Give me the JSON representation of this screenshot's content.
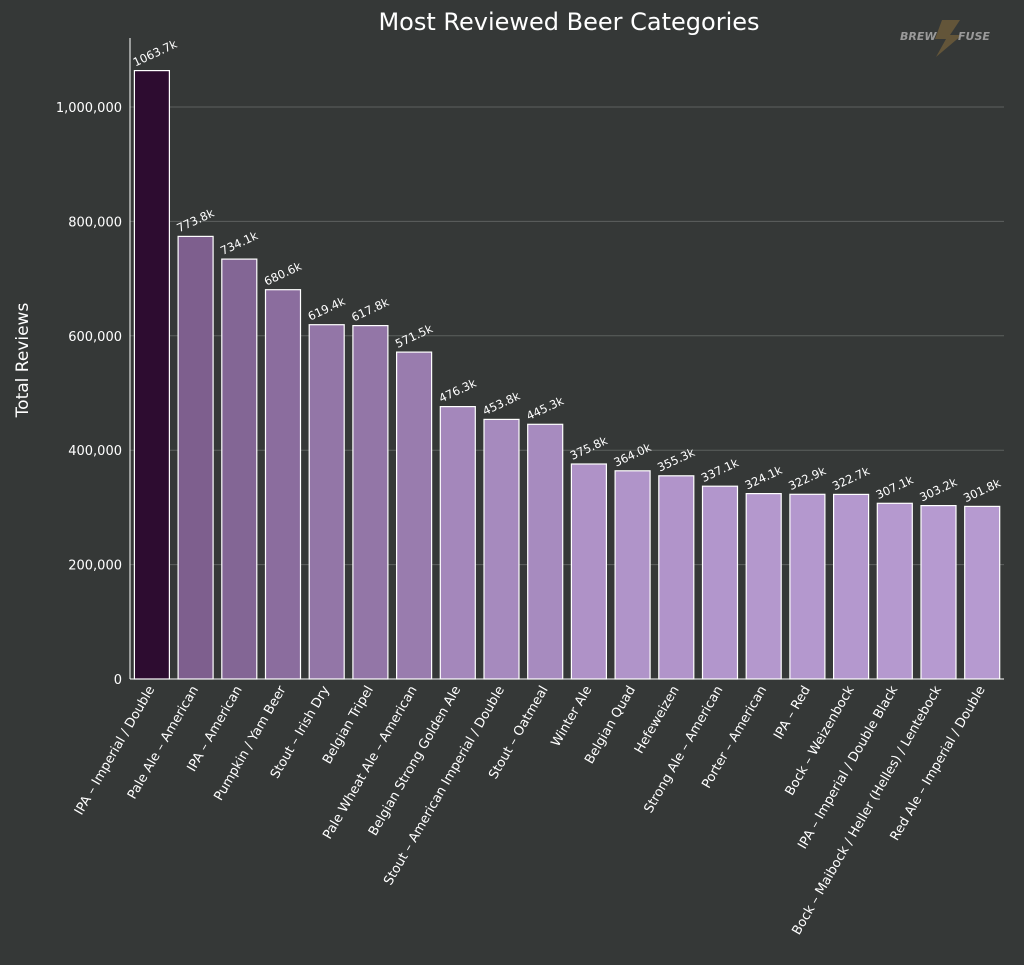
{
  "chart_data": {
    "type": "bar",
    "title": "Most Reviewed Beer Categories",
    "xlabel": "",
    "ylabel": "Total Reviews",
    "ylim": [
      0,
      1120000
    ],
    "yticks": [
      0,
      200000,
      400000,
      600000,
      800000,
      1000000
    ],
    "ytick_labels": [
      "0",
      "200,000",
      "400,000",
      "600,000",
      "800,000",
      "1,000,000"
    ],
    "grid": true,
    "categories": [
      "IPA – Imperial / Double",
      "Pale Ale – American",
      "IPA – American",
      "Pumpkin / Yam Beer",
      "Stout – Irish Dry",
      "Belgian Tripel",
      "Pale Wheat Ale – American",
      "Belgian Strong Golden Ale",
      "Stout – American Imperial / Double",
      "Stout – Oatmeal",
      "Winter Ale",
      "Belgian Quad",
      "Hefeweizen",
      "Strong Ale – American",
      "Porter – American",
      "IPA – Red",
      "Bock – Weizenbock",
      "IPA – Imperial / Double Black",
      "Bock – Maibock / Heller (Helles) / Lentebock",
      "Red Ale – Imperial / Double"
    ],
    "values": [
      1063700,
      773800,
      734100,
      680600,
      619400,
      617800,
      571500,
      476300,
      453800,
      445300,
      375800,
      364000,
      355300,
      337100,
      324100,
      322900,
      322700,
      307100,
      303200,
      301800
    ],
    "data_labels": [
      "1063.7k",
      "773.8k",
      "734.1k",
      "680.6k",
      "619.4k",
      "617.8k",
      "571.5k",
      "476.3k",
      "453.8k",
      "445.3k",
      "375.8k",
      "364.0k",
      "355.3k",
      "337.1k",
      "324.1k",
      "322.9k",
      "322.7k",
      "307.1k",
      "303.2k",
      "301.8k"
    ],
    "colors": {
      "background": "#353837",
      "grid": "#5d605f",
      "bar_dark": "#2d0c30",
      "bar_light": "#b69ad0",
      "bar_stroke": "#ffffff"
    }
  },
  "logo": {
    "text_left": "BREW",
    "text_right": "FUSE",
    "icon": "lightning-bolt-icon"
  }
}
